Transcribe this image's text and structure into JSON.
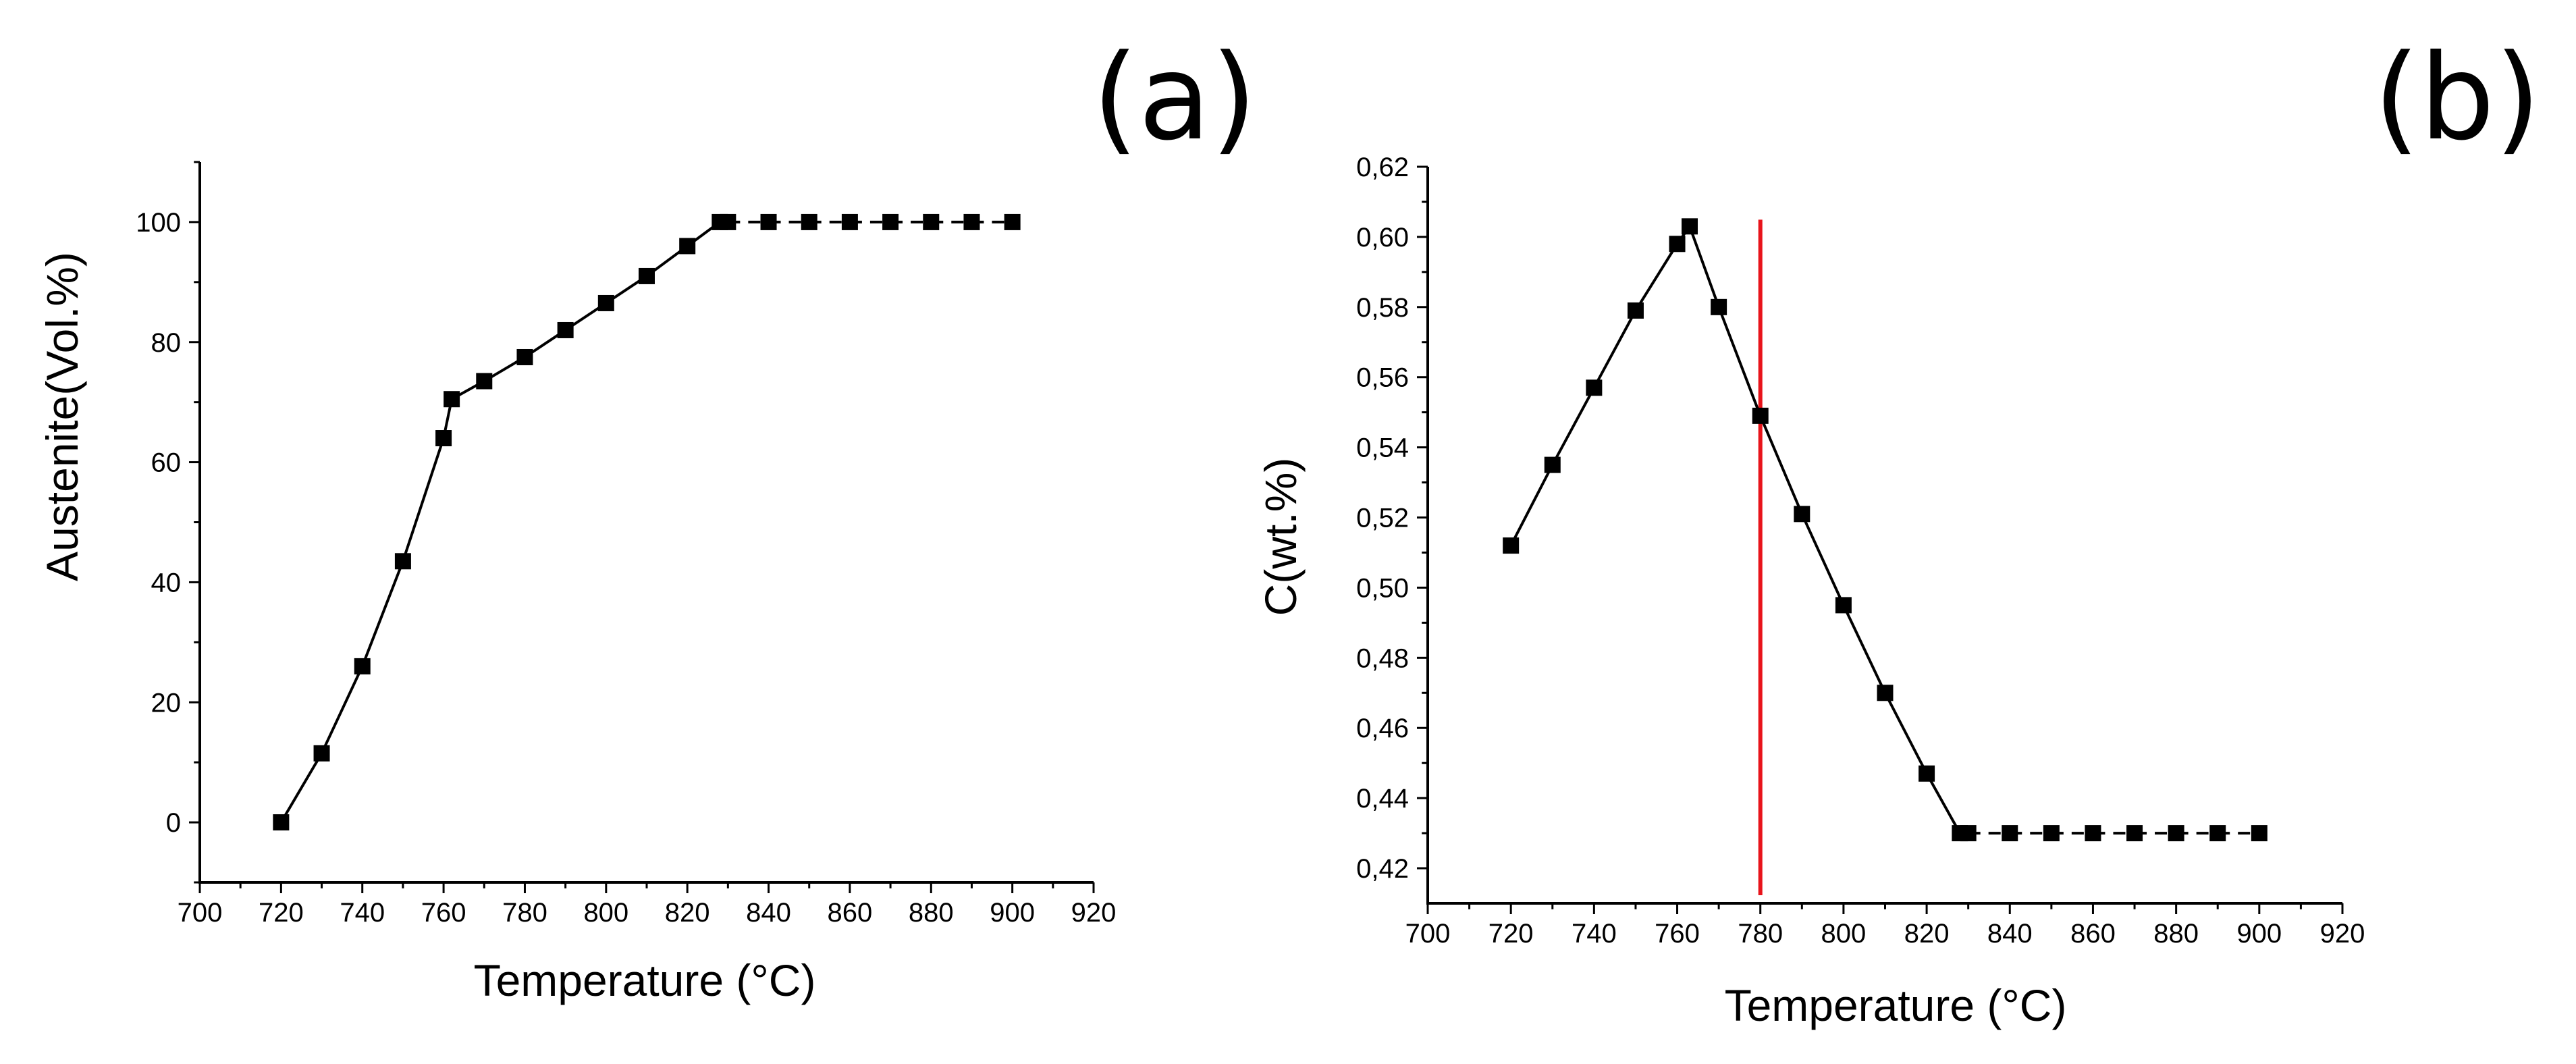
{
  "chart_data": [
    {
      "panel_label": "(a)",
      "type": "line",
      "xlabel": "Temperature (°C)",
      "ylabel": "Austenite(Vol.%)",
      "xlim": [
        700,
        920
      ],
      "ylim": [
        -10,
        110
      ],
      "xticks": [
        700,
        720,
        740,
        760,
        780,
        800,
        820,
        840,
        860,
        880,
        900,
        920
      ],
      "yticks": [
        0,
        20,
        40,
        60,
        80,
        100
      ],
      "ytick_labels": [
        "0",
        "20",
        "40",
        "60",
        "80",
        "100"
      ],
      "grid": false,
      "marker": "square",
      "series": [
        {
          "name": "Austenite",
          "x": [
            720,
            730,
            740,
            750,
            760,
            762,
            770,
            780,
            790,
            800,
            810,
            820,
            828,
            830,
            840,
            850,
            860,
            870,
            880,
            890,
            900
          ],
          "y": [
            0,
            11.5,
            26,
            43.5,
            64,
            70.5,
            73.5,
            77.5,
            82,
            86.5,
            91,
            96,
            100,
            100,
            100,
            100,
            100,
            100,
            100,
            100,
            100
          ],
          "line_styles": [
            "solid",
            "solid",
            "solid",
            "solid",
            "solid",
            "solid",
            "solid",
            "solid",
            "solid",
            "solid",
            "solid",
            "solid",
            "solid",
            "dashed",
            "dashed",
            "dashed",
            "dashed",
            "dashed",
            "dashed",
            "dashed"
          ]
        }
      ]
    },
    {
      "panel_label": "(b)",
      "type": "line",
      "xlabel": "Temperature (°C)",
      "ylabel": "C(wt.%)",
      "xlim": [
        700,
        920
      ],
      "ylim": [
        0.41,
        0.62
      ],
      "xticks": [
        700,
        720,
        740,
        760,
        780,
        800,
        820,
        840,
        860,
        880,
        900,
        920
      ],
      "yticks": [
        0.42,
        0.44,
        0.46,
        0.48,
        0.5,
        0.52,
        0.54,
        0.56,
        0.58,
        0.6,
        0.62
      ],
      "ytick_labels": [
        "0,42",
        "0,44",
        "0,46",
        "0,48",
        "0,50",
        "0,52",
        "0,54",
        "0,56",
        "0,58",
        "0,60",
        "0,62"
      ],
      "grid": false,
      "marker": "square",
      "series": [
        {
          "name": "C",
          "x": [
            720,
            730,
            740,
            750,
            760,
            763,
            770,
            780,
            790,
            800,
            810,
            820,
            828,
            830,
            840,
            850,
            860,
            870,
            880,
            890,
            900
          ],
          "y": [
            0.512,
            0.535,
            0.557,
            0.579,
            0.598,
            0.603,
            0.58,
            0.549,
            0.521,
            0.495,
            0.47,
            0.447,
            0.43,
            0.43,
            0.43,
            0.43,
            0.43,
            0.43,
            0.43,
            0.43,
            0.43
          ],
          "line_styles": [
            "solid",
            "solid",
            "solid",
            "solid",
            "solid",
            "solid",
            "solid",
            "solid",
            "solid",
            "solid",
            "solid",
            "solid",
            "solid",
            "dashed",
            "dashed",
            "dashed",
            "dashed",
            "dashed",
            "dashed",
            "dashed"
          ]
        }
      ],
      "reference_lines": [
        {
          "orientation": "vertical",
          "x": 780,
          "color": "#e8141b"
        }
      ]
    }
  ]
}
